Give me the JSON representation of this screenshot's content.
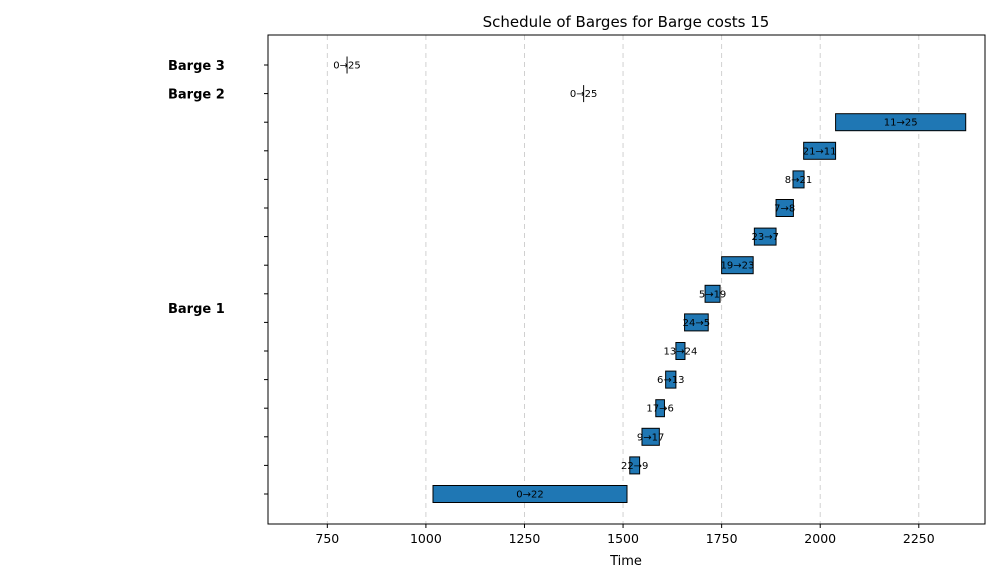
{
  "chart_data": {
    "type": "gantt",
    "title": "Schedule of Barges for Barge costs 15",
    "xlabel": "Time",
    "xlim": [
      600,
      2420
    ],
    "xticks": [
      750,
      1000,
      1250,
      1500,
      1750,
      2000,
      2250
    ],
    "grid": "x, dashed",
    "rows": [
      {
        "barge": "Barge 1",
        "label": "0→22",
        "start": 1018,
        "end": 1510
      },
      {
        "barge": "Barge 1",
        "label": "22→9",
        "start": 1517,
        "end": 1542
      },
      {
        "barge": "Barge 1",
        "label": "9→17",
        "start": 1548,
        "end": 1592
      },
      {
        "barge": "Barge 1",
        "label": "17→6",
        "start": 1583,
        "end": 1605
      },
      {
        "barge": "Barge 1",
        "label": "6→13",
        "start": 1608,
        "end": 1634
      },
      {
        "barge": "Barge 1",
        "label": "13→24",
        "start": 1634,
        "end": 1657
      },
      {
        "barge": "Barge 1",
        "label": "24→5",
        "start": 1656,
        "end": 1716
      },
      {
        "barge": "Barge 1",
        "label": "5→19",
        "start": 1708,
        "end": 1746
      },
      {
        "barge": "Barge 1",
        "label": "19→23",
        "start": 1750,
        "end": 1830
      },
      {
        "barge": "Barge 1",
        "label": "23→7",
        "start": 1833,
        "end": 1888
      },
      {
        "barge": "Barge 1",
        "label": "7→8",
        "start": 1888,
        "end": 1932
      },
      {
        "barge": "Barge 1",
        "label": "8→21",
        "start": 1931,
        "end": 1959
      },
      {
        "barge": "Barge 1",
        "label": "21→11",
        "start": 1958,
        "end": 2039
      },
      {
        "barge": "Barge 1",
        "label": "11→25",
        "start": 2039,
        "end": 2369
      },
      {
        "barge": "Barge 2",
        "label": "0→25",
        "start": 1400,
        "end": 1400
      },
      {
        "barge": "Barge 3",
        "label": "0→25",
        "start": 800,
        "end": 800
      }
    ],
    "barge_labels": [
      {
        "name": "Barge 1",
        "row": 6.5
      },
      {
        "name": "Barge 2",
        "row": 14
      },
      {
        "name": "Barge 3",
        "row": 15
      }
    ],
    "bar_color": "#1f77b4"
  }
}
